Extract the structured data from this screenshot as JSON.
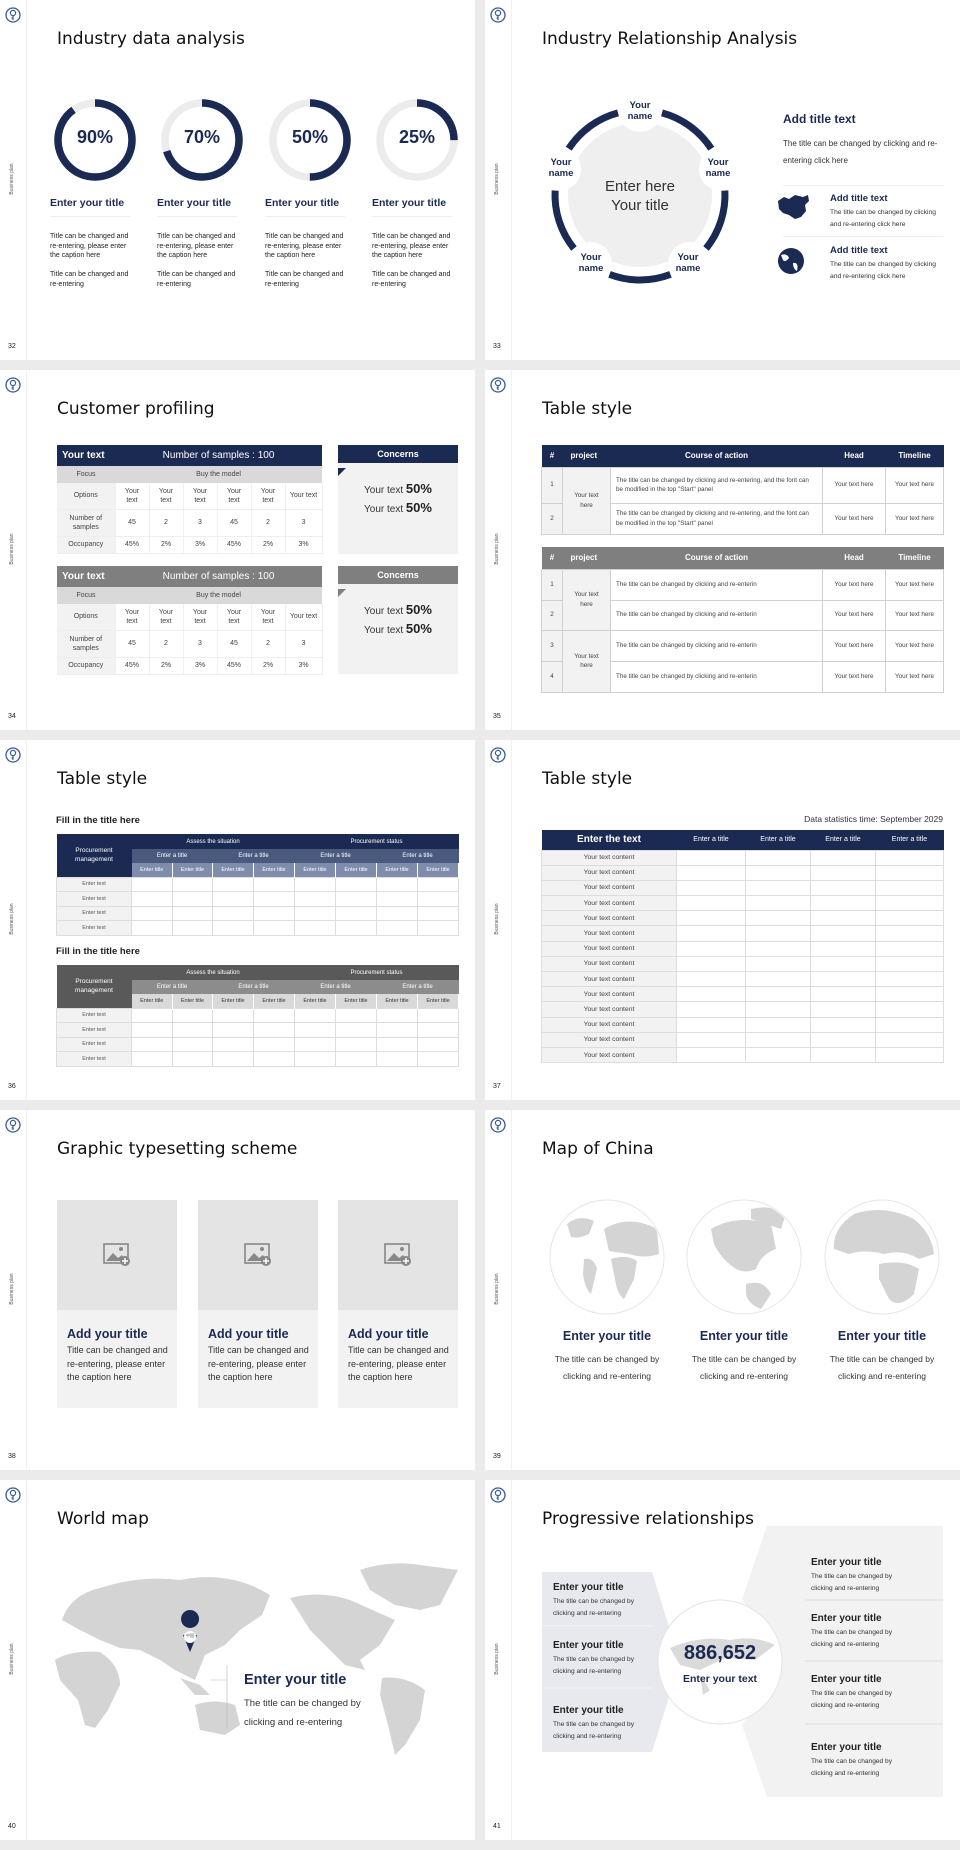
{
  "sidebar_label": "Business plan",
  "colors": {
    "navy": "#1b2a52",
    "gray_header": "#7f7f7f",
    "track": "#ececec",
    "panel": "#f2f2f2"
  },
  "s32": {
    "page": "32",
    "title": "Industry data analysis",
    "items": [
      {
        "percent": 90,
        "label": "90%",
        "title": "Enter your title",
        "desc1": "Title can be changed and re-entering, please enter the caption here",
        "desc2": "Title can be changed and re-entering"
      },
      {
        "percent": 70,
        "label": "70%",
        "title": "Enter your title",
        "desc1": "Title can be changed and re-entering, please enter the caption here",
        "desc2": "Title can be changed and re-entering"
      },
      {
        "percent": 50,
        "label": "50%",
        "title": "Enter your title",
        "desc1": "Title can be changed and re-entering, please enter the caption here",
        "desc2": "Title can be changed and re-entering"
      },
      {
        "percent": 25,
        "label": "25%",
        "title": "Enter your title",
        "desc1": "Title can be changed and re-entering, please enter the caption here",
        "desc2": "Title can be changed and re-entering"
      }
    ]
  },
  "s33": {
    "page": "33",
    "title": "Industry Relationship Analysis",
    "nodes": [
      "Your name",
      "Your name",
      "Your name",
      "Your name",
      "Your name"
    ],
    "center_line1": "Enter here",
    "center_line2": "Your title",
    "main": {
      "title": "Add title text",
      "desc": "The title can be changed by clicking and re-entering click here"
    },
    "items": [
      {
        "icon": "china-map-icon",
        "title": "Add title text",
        "desc": "The title can be changed by clicking and re-entering click here"
      },
      {
        "icon": "globe-icon",
        "title": "Add title text",
        "desc": "The title can be changed by clicking and re-entering click here"
      }
    ]
  },
  "s34": {
    "page": "34",
    "title": "Customer profiling",
    "tables": [
      {
        "style": "navy",
        "head": "Your text",
        "samples": "Number of samples : 100",
        "focus": "Focus",
        "focus_value": "Buy the model",
        "rows": [
          {
            "label": "Options",
            "cells": [
              "Your text",
              "Your text",
              "Your text",
              "Your text",
              "Your text",
              "Your text"
            ]
          },
          {
            "label": "Number of samples",
            "cells": [
              "45",
              "2",
              "3",
              "45",
              "2",
              "3"
            ]
          },
          {
            "label": "Occupancy",
            "cells": [
              "45%",
              "2%",
              "3%",
              "45%",
              "2%",
              "3%"
            ]
          }
        ],
        "concerns": {
          "title": "Concerns",
          "lines": [
            {
              "text": "Your text",
              "value": "50%"
            },
            {
              "text": "Your text",
              "value": "50%"
            }
          ]
        }
      },
      {
        "style": "gray",
        "head": "Your text",
        "samples": "Number of samples : 100",
        "focus": "Focus",
        "focus_value": "Buy the model",
        "rows": [
          {
            "label": "Options",
            "cells": [
              "Your text",
              "Your text",
              "Your text",
              "Your text",
              "Your text",
              "Your text"
            ]
          },
          {
            "label": "Number of samples",
            "cells": [
              "45",
              "2",
              "3",
              "45",
              "2",
              "3"
            ]
          },
          {
            "label": "Occupancy",
            "cells": [
              "45%",
              "2%",
              "3%",
              "45%",
              "2%",
              "3%"
            ]
          }
        ],
        "concerns": {
          "title": "Concerns",
          "lines": [
            {
              "text": "Your text",
              "value": "50%"
            },
            {
              "text": "Your text",
              "value": "50%"
            }
          ]
        }
      }
    ]
  },
  "s35": {
    "page": "35",
    "title": "Table style",
    "tables": [
      {
        "style": "navy",
        "headers": [
          "#",
          "project",
          "Course of action",
          "Head",
          "Timeline"
        ],
        "groups": [
          {
            "project": "Your text here",
            "rows": [
              {
                "num": "1",
                "action": "The title can be changed by clicking and re-entering, and the font can be modified in the top \"Start\" panel",
                "head": "Your text here",
                "timeline": "Your text here"
              },
              {
                "num": "2",
                "action": "The title can be changed by clicking and re-entering, and the font can be modified in the top \"Start\" panel",
                "head": "Your text here",
                "timeline": "Your text here"
              }
            ]
          }
        ]
      },
      {
        "style": "gray",
        "headers": [
          "#",
          "project",
          "Course of action",
          "Head",
          "Timeline"
        ],
        "groups": [
          {
            "project": "Your text here",
            "rows": [
              {
                "num": "1",
                "action": "The title can be changed by clicking and re-enterin",
                "head": "Your text here",
                "timeline": "Your text here"
              },
              {
                "num": "2",
                "action": "The title can be changed by clicking and re-enterin",
                "head": "Your text here",
                "timeline": "Your text here"
              }
            ]
          },
          {
            "project": "Your text here",
            "rows": [
              {
                "num": "3",
                "action": "The title can be changed by clicking and re-enterin",
                "head": "Your text here",
                "timeline": "Your text here"
              },
              {
                "num": "4",
                "action": "The title can be changed by clicking and re-enterin",
                "head": "Your text here",
                "timeline": "Your text here"
              }
            ]
          }
        ]
      }
    ]
  },
  "s36": {
    "page": "36",
    "title": "Table style",
    "sections": [
      {
        "style": "navy",
        "heading": "Fill in the title here",
        "corner": "Procurement management",
        "groups": [
          "Assess the situation",
          "Procurement status"
        ],
        "subgroups": [
          "Enter a title",
          "Enter a title",
          "Enter a title",
          "Enter a title"
        ],
        "cols": [
          "Enter title",
          "Enter title",
          "Enter title",
          "Enter title",
          "Enter title",
          "Enter title",
          "Enter title",
          "Enter title"
        ],
        "rows": [
          "Enter text",
          "Enter text",
          "Enter text",
          "Enter text"
        ]
      },
      {
        "style": "gray",
        "heading": "Fill in the title here",
        "corner": "Procurement management",
        "groups": [
          "Assess the situation",
          "Procurement status"
        ],
        "subgroups": [
          "Enter a title",
          "Enter a title",
          "Enter a title",
          "Enter a title"
        ],
        "cols": [
          "Enter title",
          "Enter title",
          "Enter title",
          "Enter title",
          "Enter title",
          "Enter title",
          "Enter title",
          "Enter title"
        ],
        "rows": [
          "Enter text",
          "Enter text",
          "Enter text",
          "Enter text"
        ]
      }
    ]
  },
  "s37": {
    "page": "37",
    "title": "Table style",
    "stat": "Data statistics time: September 2029",
    "header": "Enter the text",
    "cols": [
      "Enter a title",
      "Enter a title",
      "Enter a title",
      "Enter a title"
    ],
    "rows": [
      "Your text content",
      "Your text content",
      "Your text content",
      "Your text content",
      "Your text content",
      "Your text content",
      "Your text content",
      "Your text content",
      "Your text content",
      "Your text content",
      "Your text content",
      "Your text content",
      "Your text content",
      "Your text content"
    ]
  },
  "s38": {
    "page": "38",
    "title": "Graphic typesetting scheme",
    "cards": [
      {
        "title": "Add your title",
        "desc": "Title can be changed and re-entering, please enter the caption here"
      },
      {
        "title": "Add your title",
        "desc": "Title can be changed and re-entering, please enter the caption here"
      },
      {
        "title": "Add your title",
        "desc": "Title can be changed and re-entering, please enter the caption here"
      }
    ]
  },
  "s39": {
    "page": "39",
    "title": "Map of China",
    "items": [
      {
        "title": "Enter your title",
        "desc": "The title can be changed by clicking and re-entering"
      },
      {
        "title": "Enter your title",
        "desc": "The title can be changed by clicking and re-entering"
      },
      {
        "title": "Enter your title",
        "desc": "The title can be changed by clicking and re-entering"
      }
    ]
  },
  "s40": {
    "page": "40",
    "title": "World map",
    "pin_label": "中国",
    "callout_title": "Enter your title",
    "callout_desc": "The title can be changed by clicking and re-entering"
  },
  "s41": {
    "page": "41",
    "title": "Progressive relationships",
    "number": "886,652",
    "center_text": "Enter your text",
    "left": [
      {
        "title": "Enter your title",
        "desc": "The title can be changed by clicking and re-entering"
      },
      {
        "title": "Enter your title",
        "desc": "The title can be changed by clicking and re-entering"
      },
      {
        "title": "Enter your title",
        "desc": "The title can be changed by clicking and re-entering"
      }
    ],
    "right": [
      {
        "title": "Enter your title",
        "desc": "The title can be changed by clicking and re-entering"
      },
      {
        "title": "Enter your title",
        "desc": "The title can be changed by clicking and re-entering"
      },
      {
        "title": "Enter your title",
        "desc": "The title can be changed by clicking and re-entering"
      },
      {
        "title": "Enter your title",
        "desc": "The title can be changed by clicking and re-entering"
      }
    ]
  }
}
